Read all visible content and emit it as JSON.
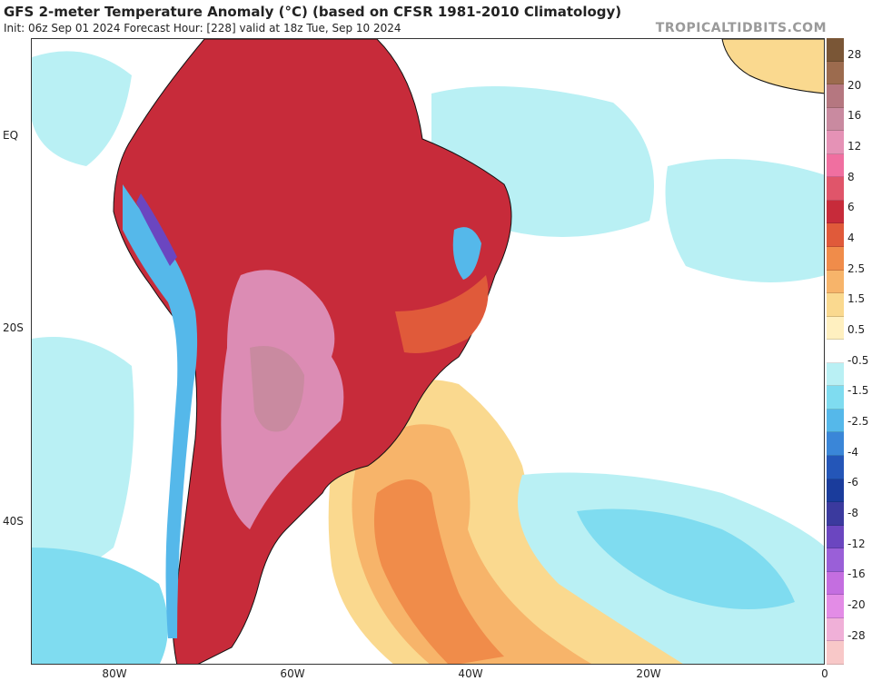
{
  "header": {
    "title": "GFS 2-meter Temperature Anomaly (°C) (based on CFSR 1981-2010 Climatology)",
    "subtitle": "Init: 06z Sep 01 2024   Forecast Hour: [228]   valid at 18z Tue, Sep 10 2024",
    "brand": "TROPICALTIDBITS.COM"
  },
  "axes": {
    "lat_labels": [
      "EQ",
      "20S",
      "40S"
    ],
    "lon_labels": [
      "80W",
      "60W",
      "40W",
      "20W",
      "0"
    ]
  },
  "colorbar": {
    "labels": [
      "28",
      "20",
      "16",
      "12",
      "8",
      "6",
      "4",
      "2.5",
      "1.5",
      "0.5",
      "-0.5",
      "-1.5",
      "-2.5",
      "-4",
      "-6",
      "-8",
      "-12",
      "-16",
      "-20",
      "-28"
    ],
    "colors": [
      "#7a5636",
      "#9c6b4e",
      "#b57780",
      "#c98aa0",
      "#e592b6",
      "#f06fa0",
      "#e0556a",
      "#c72b3a",
      "#e05a3a",
      "#f08c4a",
      "#f7b46a",
      "#fad98f",
      "#fff0c0",
      "#ffffff",
      "#b9f0f4",
      "#7fdcf0",
      "#55b8ea",
      "#3a86d8",
      "#2456b8",
      "#1a3c9c",
      "#3b3a9e",
      "#6b46c0",
      "#9a5fd8",
      "#c46ee0",
      "#e38ce6",
      "#f0b0d8",
      "#f8c8c8"
    ]
  },
  "legend_colors": {
    "land_warm": "#c72b3a",
    "land_pink": "#dc8cb4",
    "ocean_warm": "#f08c4a",
    "ocean_light": "#fad98f",
    "ocean_cool": "#7fdcf0",
    "ocean_cold": "#55b8ea"
  }
}
